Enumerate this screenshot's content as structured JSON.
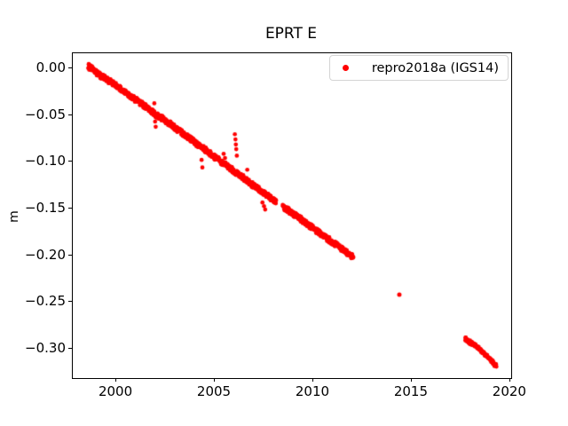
{
  "title": "EPRT E",
  "ylabel": "m",
  "legend": {
    "label": "repro2018a (IGS14)",
    "marker_color": "#ff0000"
  },
  "colors": {
    "marker": "#ff0000",
    "spine": "#000000",
    "background": "#ffffff",
    "legend_border": "#d4d4d4"
  },
  "chart_data": {
    "type": "scatter",
    "title": "EPRT E",
    "xlabel": "",
    "ylabel": "m",
    "grid": false,
    "legend_position": "upper right",
    "legend_entries": [
      {
        "label": "repro2018a (IGS14)",
        "color": "#ff0000",
        "marker": "dot"
      }
    ],
    "xlim": [
      1997.79,
      2020.05
    ],
    "ylim": [
      -0.3313,
      0.0161
    ],
    "xticks": [
      {
        "v": 2000,
        "label": "2000"
      },
      {
        "v": 2005,
        "label": "2005"
      },
      {
        "v": 2010,
        "label": "2010"
      },
      {
        "v": 2015,
        "label": "2015"
      },
      {
        "v": 2020,
        "label": "2020"
      }
    ],
    "yticks": [
      {
        "v": 0.0,
        "label": "0.00"
      },
      {
        "v": -0.05,
        "label": "−0.05"
      },
      {
        "v": -0.1,
        "label": "−0.10"
      },
      {
        "v": -0.15,
        "label": "−0.15"
      },
      {
        "v": -0.2,
        "label": "−0.20"
      },
      {
        "v": -0.25,
        "label": "−0.25"
      },
      {
        "v": -0.3,
        "label": "−0.30"
      }
    ],
    "series": [
      {
        "name": "repro2018a (IGS14)",
        "color": "#ff0000",
        "marker_radius_px": 2.35,
        "representation": "dense scatter band sampled by control points",
        "band_segments": [
          {
            "half_width": 0.0028,
            "points": [
              [
                1998.58,
                0.002
              ],
              [
                1998.7,
                0.0
              ],
              [
                1998.85,
                -0.002
              ],
              [
                1999.0,
                -0.005
              ],
              [
                1999.2,
                -0.008
              ],
              [
                1999.45,
                -0.011
              ],
              [
                1999.7,
                -0.0145
              ],
              [
                2000.0,
                -0.019
              ],
              [
                2000.3,
                -0.0235
              ],
              [
                2000.6,
                -0.028
              ],
              [
                2000.9,
                -0.0325
              ],
              [
                2001.2,
                -0.037
              ],
              [
                2001.5,
                -0.0415
              ],
              [
                2001.8,
                -0.046
              ],
              [
                2002.0,
                -0.05
              ],
              [
                2002.25,
                -0.0525
              ],
              [
                2002.5,
                -0.056
              ],
              [
                2002.8,
                -0.0605
              ],
              [
                2003.1,
                -0.0655
              ],
              [
                2003.4,
                -0.07
              ],
              [
                2003.7,
                -0.0745
              ],
              [
                2004.0,
                -0.0795
              ],
              [
                2004.3,
                -0.084
              ],
              [
                2004.6,
                -0.0885
              ],
              [
                2004.9,
                -0.0935
              ],
              [
                2005.2,
                -0.098
              ],
              [
                2005.5,
                -0.1025
              ],
              [
                2005.8,
                -0.1075
              ],
              [
                2006.05,
                -0.1115
              ],
              [
                2006.3,
                -0.115
              ],
              [
                2006.6,
                -0.1195
              ],
              [
                2006.9,
                -0.1245
              ],
              [
                2007.2,
                -0.129
              ],
              [
                2007.5,
                -0.1335
              ],
              [
                2007.8,
                -0.138
              ],
              [
                2008.1,
                -0.1425
              ]
            ]
          },
          {
            "half_width": 0.0028,
            "points": [
              [
                2008.45,
                -0.148
              ],
              [
                2008.7,
                -0.1515
              ],
              [
                2009.0,
                -0.156
              ],
              [
                2009.3,
                -0.1605
              ],
              [
                2009.6,
                -0.165
              ],
              [
                2009.9,
                -0.17
              ],
              [
                2010.2,
                -0.1745
              ],
              [
                2010.5,
                -0.179
              ],
              [
                2010.8,
                -0.1835
              ],
              [
                2011.1,
                -0.188
              ],
              [
                2011.4,
                -0.1925
              ],
              [
                2011.7,
                -0.197
              ],
              [
                2011.95,
                -0.201
              ],
              [
                2012.02,
                -0.2025
              ]
            ]
          },
          {
            "half_width": 0.0015,
            "points": [
              [
                2017.72,
                -0.2895
              ],
              [
                2017.8,
                -0.2915
              ],
              [
                2017.88,
                -0.2925
              ],
              [
                2017.96,
                -0.2935
              ],
              [
                2018.04,
                -0.294
              ],
              [
                2018.12,
                -0.295
              ],
              [
                2018.22,
                -0.2965
              ],
              [
                2018.32,
                -0.298
              ],
              [
                2018.42,
                -0.3
              ],
              [
                2018.52,
                -0.302
              ],
              [
                2018.62,
                -0.304
              ],
              [
                2018.72,
                -0.306
              ],
              [
                2018.82,
                -0.308
              ],
              [
                2018.92,
                -0.31
              ],
              [
                2019.0,
                -0.312
              ],
              [
                2019.08,
                -0.314
              ],
              [
                2019.16,
                -0.316
              ],
              [
                2019.24,
                -0.3175
              ]
            ]
          }
        ],
        "outlier_points": [
          [
            1998.6,
            0.0045
          ],
          [
            1998.66,
            0.0035
          ],
          [
            1998.72,
            0.0025
          ],
          [
            1998.62,
            -0.0015
          ],
          [
            1998.78,
            0.001
          ],
          [
            2001.93,
            -0.0375
          ],
          [
            2001.97,
            -0.057
          ],
          [
            2002.0,
            -0.0625
          ],
          [
            2004.33,
            -0.098
          ],
          [
            2004.37,
            -0.106
          ],
          [
            2005.45,
            -0.0915
          ],
          [
            2005.52,
            -0.096
          ],
          [
            2006.02,
            -0.0705
          ],
          [
            2006.05,
            -0.076
          ],
          [
            2006.07,
            -0.0815
          ],
          [
            2006.09,
            -0.0865
          ],
          [
            2006.12,
            -0.0935
          ],
          [
            2006.65,
            -0.1085
          ],
          [
            2007.42,
            -0.1435
          ],
          [
            2007.5,
            -0.1475
          ],
          [
            2007.56,
            -0.151
          ],
          [
            2017.74,
            -0.288
          ],
          [
            2017.84,
            -0.29
          ],
          [
            2017.96,
            -0.291
          ],
          [
            2018.02,
            -0.2955
          ],
          [
            2019.12,
            -0.313
          ],
          [
            2019.2,
            -0.3185
          ],
          [
            2019.28,
            -0.3165
          ],
          [
            2019.3,
            -0.319
          ]
        ],
        "isolated_points": [
          [
            2014.37,
            -0.242
          ]
        ]
      }
    ]
  }
}
